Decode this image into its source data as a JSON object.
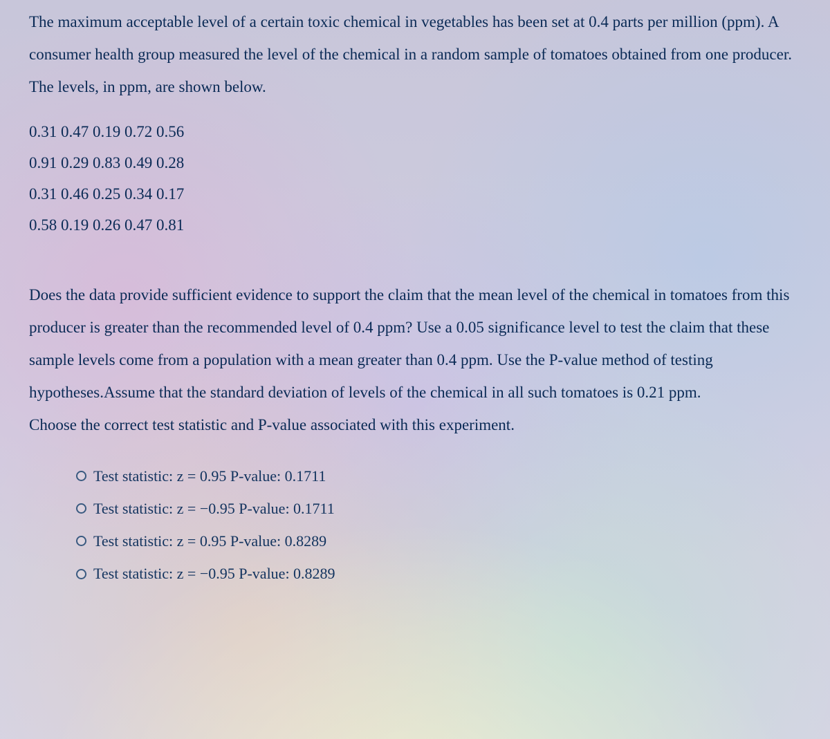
{
  "intro": "The maximum acceptable level of a certain toxic chemical in vegetables has been set at 0.4 parts per million (ppm). A consumer health group measured the level of the chemical in a random sample of tomatoes obtained from one producer. The levels, in ppm, are shown below.",
  "data_rows": [
    "0.31 0.47 0.19 0.72 0.56",
    "0.91 0.29 0.83 0.49 0.28",
    "0.31 0.46 0.25 0.34 0.17",
    "0.58 0.19 0.26 0.47 0.81"
  ],
  "question": "Does the data provide sufficient evidence to support the claim that the mean level of the chemical in tomatoes from this producer is greater than the recommended level of 0.4 ppm? Use a 0.05 significance level to test the claim that these sample levels come from a population with a mean greater than 0.4 ppm. Use the P-value method of testing hypotheses.Assume that the standard deviation of levels of the chemical in all such tomatoes is 0.21 ppm.",
  "prompt": "Choose the correct test statistic and P-value associated with this experiment.",
  "options": [
    "Test statistic: z = 0.95 P-value: 0.1711",
    "Test statistic: z = −0.95 P-value: 0.1711",
    "Test statistic: z = 0.95 P-value: 0.8289",
    "Test statistic: z = −0.95 P-value: 0.8289"
  ],
  "colors": {
    "text": "#0a2a55",
    "option_text": "#12335e",
    "radio_border": "#3a5a80"
  },
  "font_sizes": {
    "body": 23,
    "options": 22
  }
}
